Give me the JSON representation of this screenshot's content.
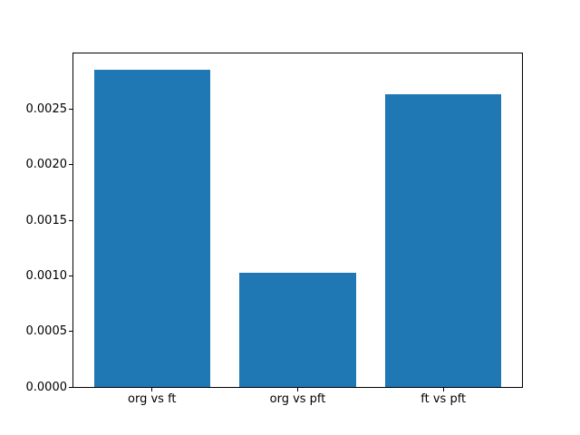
{
  "figure": {
    "background": "#ffffff",
    "spine_color": "#000000",
    "text_color": "#000000"
  },
  "chart_data": {
    "type": "bar",
    "title": "",
    "xlabel": "",
    "ylabel": "",
    "categories": [
      "org vs ft",
      "org vs pft",
      "ft vs pft"
    ],
    "values": [
      0.00285,
      0.00103,
      0.00263
    ],
    "bar_color": "#1f77b4",
    "bar_width": 0.8,
    "xlim": [
      -0.54,
      2.54
    ],
    "ylim": [
      0,
      0.003
    ],
    "yticks": [
      0,
      0.0005,
      0.001,
      0.0015,
      0.002,
      0.0025
    ],
    "ytick_labels": [
      "0.0000",
      "0.0005",
      "0.0010",
      "0.0015",
      "0.0020",
      "0.0025"
    ],
    "grid": false,
    "legend": null
  }
}
